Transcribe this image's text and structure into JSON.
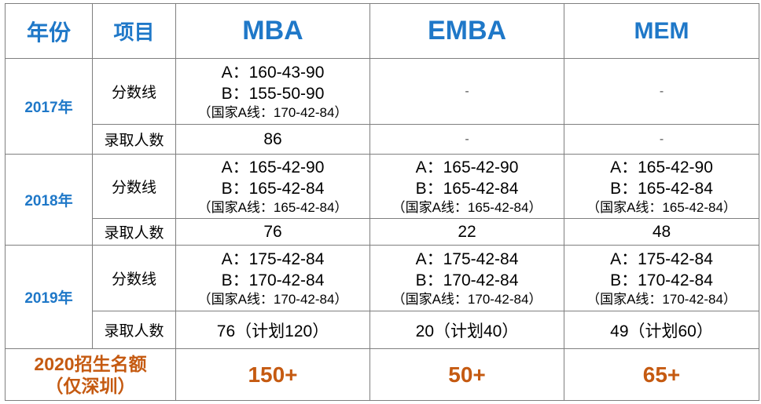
{
  "header": {
    "year": "年份",
    "item": "项目",
    "programs": [
      "MBA",
      "EMBA",
      "MEM"
    ]
  },
  "rows": [
    {
      "year": "2017年",
      "score_label": "分数线",
      "admit_label": "录取人数",
      "scores": [
        {
          "a": "A：160-43-90",
          "b": "B：155-50-90",
          "note": "（国家A线：170-42-84）"
        },
        {
          "dash": "-"
        },
        {
          "dash": "-"
        }
      ],
      "admits": [
        "86",
        "-",
        "-"
      ]
    },
    {
      "year": "2018年",
      "score_label": "分数线",
      "admit_label": "录取人数",
      "scores": [
        {
          "a": "A：165-42-90",
          "b": "B：165-42-84",
          "note": "（国家A线：165-42-84）"
        },
        {
          "a": "A：165-42-90",
          "b": "B：165-42-84",
          "note": "（国家A线：165-42-84）"
        },
        {
          "a": "A：165-42-90",
          "b": "B：165-42-84",
          "note": "（国家A线：165-42-84）"
        }
      ],
      "admits": [
        "76",
        "22",
        "48"
      ]
    },
    {
      "year": "2019年",
      "score_label": "分数线",
      "admit_label": "录取人数",
      "scores": [
        {
          "a": "A：175-42-84",
          "b": "B：170-42-84",
          "note": "（国家A线：170-42-84）"
        },
        {
          "a": "A：175-42-84",
          "b": "B：170-42-84",
          "note": "（国家A线：170-42-84）"
        },
        {
          "a": "A：175-42-84",
          "b": "B：170-42-84",
          "note": "（国家A线：170-42-84）"
        }
      ],
      "admits": [
        "76（计划120）",
        "20（计划40）",
        "49（计划60）"
      ]
    }
  ],
  "quota": {
    "label_line1": "2020招生名额",
    "label_line2": "（仅深圳）",
    "values": [
      "150+",
      "50+",
      "65+"
    ]
  },
  "colors": {
    "header_blue": "#1f78c8",
    "quota_orange": "#c55a11",
    "border": "#7f7f7f"
  }
}
